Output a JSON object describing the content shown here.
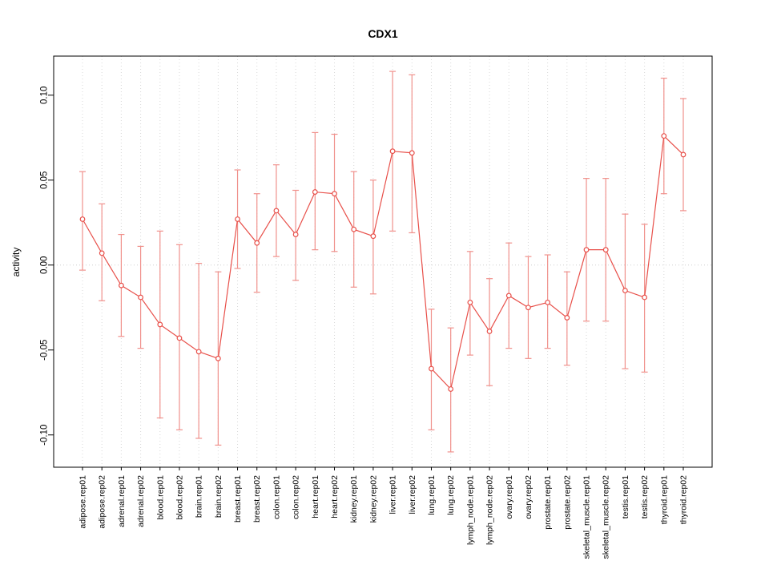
{
  "chart_data": {
    "type": "line",
    "title": "CDX1",
    "xlabel": "",
    "ylabel": "activity",
    "ylim": [
      -0.119,
      0.123
    ],
    "yticks": [
      -0.1,
      -0.05,
      0.0,
      0.05,
      0.1
    ],
    "ytick_labels": [
      "-0.10",
      "-0.05",
      "0.00",
      "0.05",
      "0.10"
    ],
    "legend_position": "none",
    "grid": {
      "vertical_gridlines": "dotted, one per category",
      "zero_line": "dotted horizontal at y=0"
    },
    "series_color": "#e8504a",
    "errorbar_color": "#f0918c",
    "point_style": "open-circle",
    "categories": [
      "adipose.rep01",
      "adipose.rep02",
      "adrenal.rep01",
      "adrenal.rep02",
      "blood.rep01",
      "blood.rep02",
      "brain.rep01",
      "brain.rep02",
      "breast.rep01",
      "breast.rep02",
      "colon.rep01",
      "colon.rep02",
      "heart.rep01",
      "heart.rep02",
      "kidney.rep01",
      "kidney.rep02",
      "liver.rep01",
      "liver.rep02",
      "lung.rep01",
      "lung.rep02",
      "lymph_node.rep01",
      "lymph_node.rep02",
      "ovary.rep01",
      "ovary.rep02",
      "prostate.rep01",
      "prostate.rep02",
      "skeletal_muscle.rep01",
      "skeletal_muscle.rep02",
      "testis.rep01",
      "testis.rep02",
      "thyroid.rep01",
      "thyroid.rep02"
    ],
    "values": [
      0.027,
      0.007,
      -0.012,
      -0.019,
      -0.035,
      -0.043,
      -0.051,
      -0.055,
      0.027,
      0.013,
      0.032,
      0.018,
      0.043,
      0.042,
      0.021,
      0.017,
      0.067,
      0.066,
      -0.061,
      -0.073,
      -0.022,
      -0.039,
      -0.018,
      -0.025,
      -0.022,
      -0.031,
      0.009,
      0.009,
      -0.015,
      -0.019,
      0.076,
      0.065
    ],
    "err_low": [
      -0.003,
      -0.021,
      -0.042,
      -0.049,
      -0.09,
      -0.097,
      -0.102,
      -0.106,
      -0.002,
      -0.016,
      0.005,
      -0.009,
      0.009,
      0.008,
      -0.013,
      -0.017,
      0.02,
      0.019,
      -0.097,
      -0.11,
      -0.053,
      -0.071,
      -0.049,
      -0.055,
      -0.049,
      -0.059,
      -0.033,
      -0.033,
      -0.061,
      -0.063,
      0.042,
      0.032
    ],
    "err_high": [
      0.055,
      0.036,
      0.018,
      0.011,
      0.02,
      0.012,
      0.001,
      -0.004,
      0.056,
      0.042,
      0.059,
      0.044,
      0.078,
      0.077,
      0.055,
      0.05,
      0.114,
      0.112,
      -0.026,
      -0.037,
      0.008,
      -0.008,
      0.013,
      0.005,
      0.006,
      -0.004,
      0.051,
      0.051,
      0.03,
      0.024,
      0.11,
      0.098
    ]
  }
}
